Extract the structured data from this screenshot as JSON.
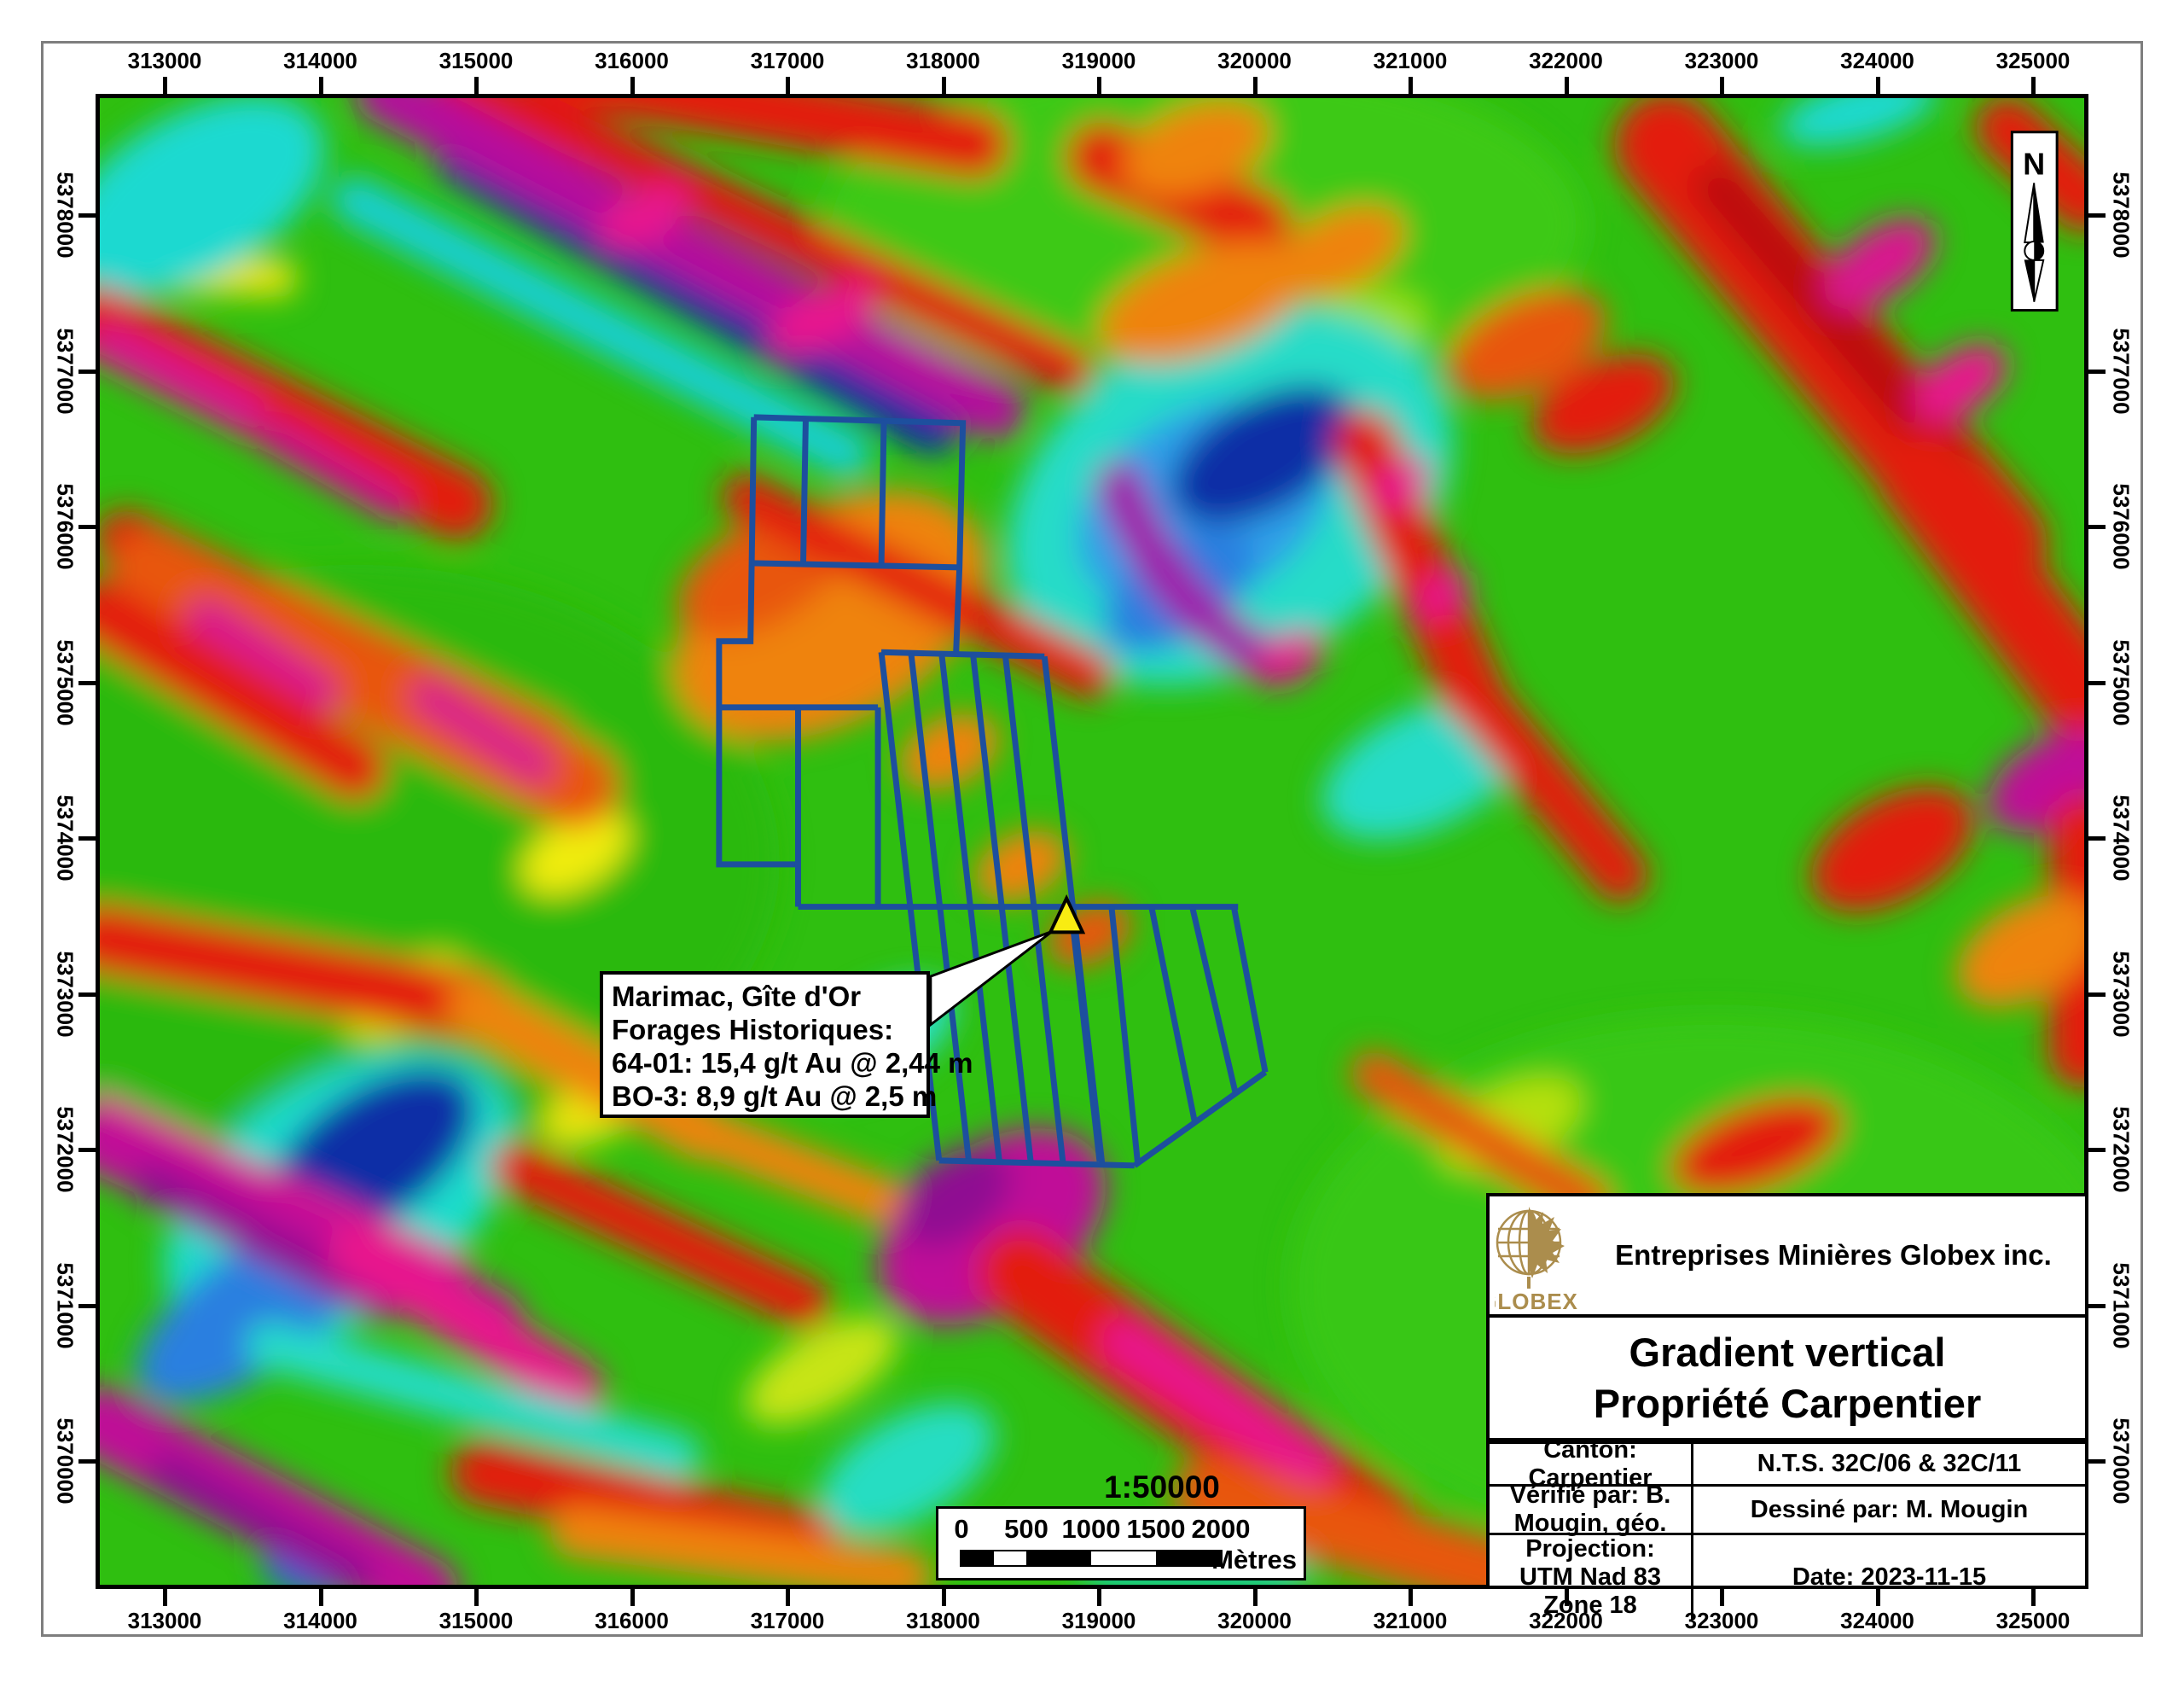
{
  "map_meta": {
    "kind": "magnetic-gradient-heatmap-map",
    "company": "Entreprises Minières Globex inc.",
    "logo_text": "GLOBEX",
    "title_lines": [
      "Gradient vertical",
      "Propriété Carpentier"
    ],
    "info_cells": [
      [
        "Canton: Carpentier"
      ],
      [
        "N.T.S. 32C/06 & 32C/11"
      ],
      [
        "Vérifié par: B. Mougin, géo."
      ],
      [
        "Dessiné par: M. Mougin"
      ],
      [
        "Projection:",
        "UTM Nad 83 Zone 18"
      ],
      [
        "Date: 2023-11-15"
      ]
    ]
  },
  "axes": {
    "top": [
      "313000",
      "314000",
      "315000",
      "316000",
      "317000",
      "318000",
      "319000",
      "320000",
      "321000",
      "322000",
      "323000",
      "324000",
      "325000"
    ],
    "bottom": [
      "313000",
      "314000",
      "315000",
      "316000",
      "317000",
      "318000",
      "319000",
      "320000",
      "321000",
      "322000",
      "323000",
      "324000",
      "325000"
    ],
    "left": [
      "5378000",
      "5377000",
      "5376000",
      "5375000",
      "5374000",
      "5373000",
      "5372000",
      "5371000",
      "5370000"
    ],
    "right": [
      "5378000",
      "5377000",
      "5376000",
      "5375000",
      "5374000",
      "5373000",
      "5372000",
      "5371000",
      "5370000"
    ]
  },
  "north": {
    "label": "N"
  },
  "callout": {
    "lines": [
      "Marimac, Gîte d'Or",
      "Forages Historiques:",
      "64-01: 15,4 g/t Au @ 2,44 m",
      "BO-3: 8,9 g/t Au @ 2,5 m"
    ]
  },
  "scale": {
    "ratio": "1:50000",
    "tick_labels": [
      "0",
      "500",
      "1000",
      "1500",
      "2000"
    ],
    "unit": "Mètres"
  },
  "colors": {
    "claim_outline": "#1d4f9e",
    "marker_fill": "#f8ec12",
    "logo_gold": "#ab8d4d",
    "frame_gray": "#7e7e7e",
    "base_green": "#2fbf10"
  }
}
